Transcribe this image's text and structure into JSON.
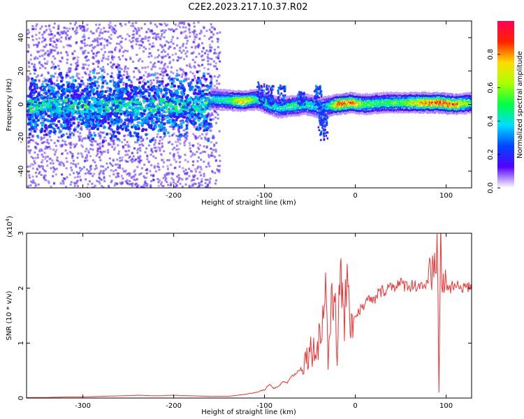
{
  "title": "C2E2.2023.217.10.37.R02",
  "chart_data": [
    {
      "type": "heatmap",
      "title": "",
      "xlabel": "Height of straight line (km)",
      "ylabel": "Frequency (Hz)",
      "xlim": [
        -362,
        128
      ],
      "ylim": [
        -50,
        50
      ],
      "xticks": [
        -300,
        -200,
        -100,
        0,
        100
      ],
      "xtick_labels": [
        "-300",
        "-200",
        "-100",
        "0",
        "100"
      ],
      "yticks": [
        -40,
        -20,
        0,
        20,
        40
      ],
      "ytick_labels": [
        "-40",
        "-20",
        "0",
        "20",
        "40"
      ],
      "grid": false,
      "description": [
        {
          "x_range": [
            -362,
            -160
          ],
          "pattern": "broadband scatter, band centered near 0 Hz with low-amplitude speckle up to ±50 Hz"
        },
        {
          "x_range": [
            -160,
            -35
          ],
          "pattern": "narrow band near 0-3 Hz, amplitude ~0.4-0.9; excursions up to ~15 Hz near -100 and -40 km"
        },
        {
          "x_range": [
            -35,
            128
          ],
          "pattern": "narrow band near 0-2 Hz, amplitude ~0.5-0.95; broadened near 90 km"
        }
      ],
      "band": [
        {
          "x": -160,
          "f": 3,
          "amp": 0.45
        },
        {
          "x": -140,
          "f": 2.5,
          "amp": 0.5
        },
        {
          "x": -125,
          "f": 2,
          "amp": 0.85
        },
        {
          "x": -110,
          "f": 3,
          "amp": 0.5
        },
        {
          "x": -100,
          "f": 1,
          "amp": 0.55
        },
        {
          "x": -85,
          "f": -2,
          "amp": 0.45
        },
        {
          "x": -70,
          "f": -1,
          "amp": 0.55
        },
        {
          "x": -55,
          "f": 0,
          "amp": 0.5
        },
        {
          "x": -40,
          "f": -2,
          "amp": 0.4
        },
        {
          "x": -30,
          "f": -1,
          "amp": 0.5
        },
        {
          "x": -20,
          "f": 0,
          "amp": 0.95
        },
        {
          "x": -5,
          "f": 1,
          "amp": 0.9
        },
        {
          "x": 10,
          "f": 0,
          "amp": 0.6
        },
        {
          "x": 30,
          "f": 1,
          "amp": 0.55
        },
        {
          "x": 50,
          "f": 1,
          "amp": 0.6
        },
        {
          "x": 70,
          "f": 1,
          "amp": 0.85
        },
        {
          "x": 90,
          "f": 1,
          "amp": 0.95
        },
        {
          "x": 110,
          "f": 0,
          "amp": 0.9
        },
        {
          "x": 128,
          "f": 1,
          "amp": 0.55
        }
      ]
    },
    {
      "type": "colorbar",
      "label": "Normalized spectral amplitude",
      "range": [
        0,
        1
      ],
      "ticks": [
        0,
        0.2,
        0.4,
        0.6,
        0.8
      ],
      "tick_labels": [
        "0.0",
        "0.2",
        "0.4",
        "0.6",
        "0.8"
      ],
      "colormap": [
        "#ffffff",
        "#5500ff",
        "#0044ff",
        "#00ddff",
        "#00ff44",
        "#aaff00",
        "#ffdd00",
        "#ff2200",
        "#ff0055"
      ]
    },
    {
      "type": "line",
      "xlabel": "Height of straight line (km)",
      "ylabel": "SNR (10 * v/v)",
      "y_multiplier": "(x10",
      "y_multiplier_exp": "4",
      "y_multiplier_close": ")",
      "xlim": [
        -362,
        128
      ],
      "ylim": [
        0,
        3
      ],
      "xticks": [
        -300,
        -200,
        -100,
        0,
        100
      ],
      "xtick_labels": [
        "-300",
        "-200",
        "-100",
        "0",
        "100"
      ],
      "yticks": [
        0,
        1,
        2,
        3
      ],
      "ytick_labels": [
        "0",
        "1",
        "2",
        "3"
      ],
      "grid": false,
      "series": [
        {
          "color": "#ee3333",
          "x": [
            -362,
            -340,
            -320,
            -300,
            -280,
            -260,
            -240,
            -220,
            -200,
            -180,
            -160,
            -140,
            -130,
            -120,
            -110,
            -100,
            -95,
            -90,
            -85,
            -80,
            -75,
            -70,
            -65,
            -60,
            -55,
            -50,
            -45,
            -40,
            -35,
            -32,
            -30,
            -28,
            -25,
            -22,
            -20,
            -18,
            -15,
            -12,
            -10,
            -8,
            -5,
            -2,
            0,
            5,
            10,
            15,
            20,
            25,
            30,
            35,
            40,
            50,
            60,
            70,
            80,
            85,
            88,
            90,
            92,
            94,
            96,
            100,
            105,
            110,
            115,
            120,
            125,
            128
          ],
          "y": [
            0.01,
            0.01,
            0.02,
            0.02,
            0.03,
            0.04,
            0.05,
            0.04,
            0.05,
            0.04,
            0.03,
            0.03,
            0.05,
            0.07,
            0.1,
            0.15,
            0.25,
            0.18,
            0.2,
            0.3,
            0.28,
            0.4,
            0.45,
            0.55,
            0.7,
            0.9,
            0.85,
            1.1,
            1.5,
            2.2,
            0.6,
            1.3,
            1.7,
            2.0,
            0.8,
            1.6,
            2.1,
            1.4,
            2.2,
            1.5,
            1.6,
            1.4,
            1.5,
            1.6,
            1.7,
            1.8,
            1.75,
            1.9,
            1.95,
            2.0,
            2.05,
            2.07,
            2.05,
            2.06,
            2.05,
            2.1,
            2.6,
            2.95,
            0.12,
            2.9,
            2.0,
            2.05,
            2.0,
            2.03,
            2.02,
            2.05,
            2.0,
            1.95
          ]
        }
      ]
    }
  ]
}
